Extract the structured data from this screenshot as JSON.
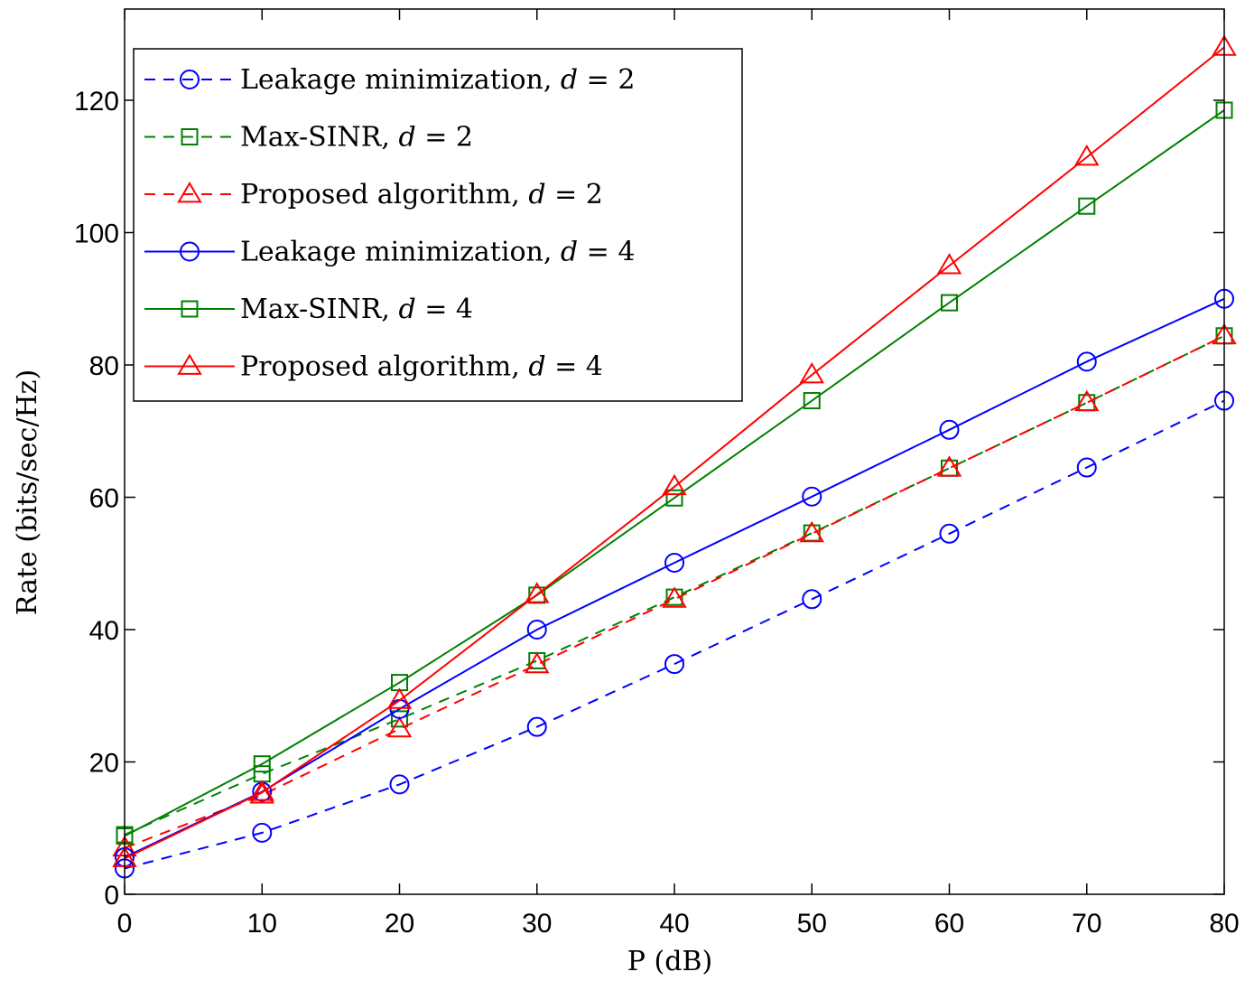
{
  "chart_data": {
    "type": "line",
    "xlabel": "P (dB)",
    "ylabel": "Rate (bits/sec/Hz)",
    "xlim": [
      0,
      80
    ],
    "ylim": [
      0,
      120
    ],
    "xticks": [
      0,
      10,
      20,
      30,
      40,
      50,
      60,
      70,
      80
    ],
    "yticks": [
      0,
      20,
      40,
      60,
      80,
      100,
      120
    ],
    "grid": false,
    "legend_position": "top-left",
    "x": [
      0,
      10,
      20,
      30,
      40,
      50,
      60,
      70,
      80
    ],
    "series": [
      {
        "name": "Leakage minimization, d = 2",
        "label_text": "Leakage minimization, ",
        "label_math": "d",
        "label_tail": " = 2",
        "color": "#0000ff",
        "dash": "dashed",
        "marker": "circle",
        "values": [
          3.9,
          9.3,
          16.6,
          25.3,
          34.8,
          44.6,
          54.5,
          64.5,
          74.6
        ]
      },
      {
        "name": "Max-SINR, d = 2",
        "label_text": "Max-SINR, ",
        "label_math": "d",
        "label_tail": " = 2",
        "color": "#008000",
        "dash": "dashed",
        "marker": "square",
        "values": [
          9.0,
          18.2,
          26.5,
          35.3,
          44.9,
          54.6,
          64.4,
          74.3,
          84.4
        ]
      },
      {
        "name": "Proposed algorithm, d = 2",
        "label_text": "Proposed algorithm, ",
        "label_math": "d",
        "label_tail": " = 2",
        "color": "#ff0000",
        "dash": "dashed",
        "marker": "triangle",
        "values": [
          7.0,
          15.0,
          25.0,
          34.7,
          44.6,
          54.5,
          64.4,
          74.3,
          84.4
        ]
      },
      {
        "name": "Leakage minimization, d = 4",
        "label_text": "Leakage minimization, ",
        "label_math": "d",
        "label_tail": " = 4",
        "color": "#0000ff",
        "dash": "solid",
        "marker": "circle",
        "values": [
          5.6,
          15.5,
          28.0,
          40.0,
          50.1,
          60.1,
          70.2,
          80.5,
          90.0
        ]
      },
      {
        "name": "Max-SINR, d = 4",
        "label_text": "Max-SINR, ",
        "label_math": "d",
        "label_tail": " = 4",
        "color": "#008000",
        "dash": "solid",
        "marker": "square",
        "values": [
          8.8,
          19.7,
          32.0,
          45.2,
          59.9,
          74.6,
          89.4,
          104.0,
          118.5
        ]
      },
      {
        "name": "Proposed algorithm, d = 4",
        "label_text": "Proposed algorithm, ",
        "label_math": "d",
        "label_tail": " = 4",
        "color": "#ff0000",
        "dash": "solid",
        "marker": "triangle",
        "values": [
          5.4,
          15.4,
          29.3,
          45.3,
          61.6,
          78.5,
          95.0,
          111.4,
          128.0
        ]
      }
    ]
  }
}
